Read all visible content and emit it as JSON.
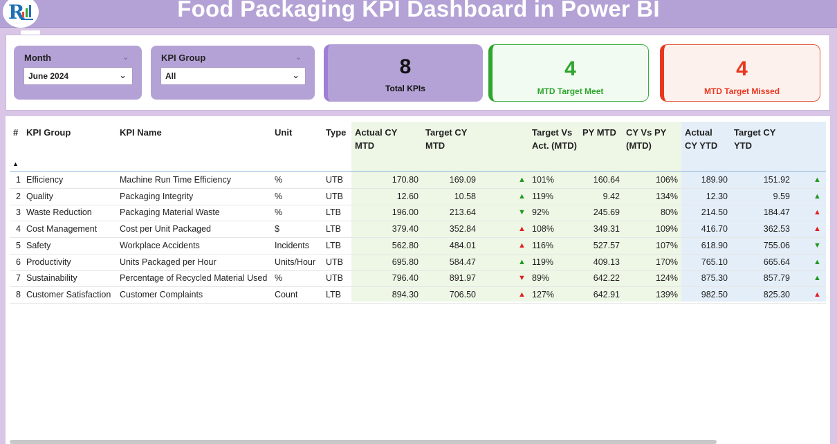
{
  "header": {
    "title": "Food Packaging KPI Dashboard in Power BI",
    "more_options": "..."
  },
  "slicers": {
    "month": {
      "label": "Month",
      "value": "June 2024"
    },
    "kpi_group": {
      "label": "KPI Group",
      "value": "All"
    }
  },
  "cards": {
    "total": {
      "value": "8",
      "caption": "Total KPIs"
    },
    "meet": {
      "value": "4",
      "caption": "MTD Target Meet"
    },
    "missed": {
      "value": "4",
      "caption": "MTD Target Missed"
    }
  },
  "colors": {
    "accent_purple": "#b4a2d6",
    "meet_green": "#2ea52e",
    "missed_red": "#e8371e",
    "mtd_bg": "#eef7e6",
    "ytd_bg": "#e4eef8"
  },
  "table": {
    "headers": {
      "num": "#",
      "group": "KPI Group",
      "name": "KPI Name",
      "unit": "Unit",
      "type": "Type",
      "actual_mtd": "Actual CY MTD",
      "target_mtd": "Target CY MTD",
      "tva": "Target Vs Act. (MTD)",
      "py_mtd": "PY MTD",
      "cy_py": "CY Vs PY (MTD)",
      "actual_ytd": "Actual CY YTD",
      "target_ytd": "Target CY YTD"
    },
    "rows": [
      {
        "num": "1",
        "group": "Efficiency",
        "name": "Machine Run Time Efficiency",
        "unit": "%",
        "type": "UTB",
        "actual_mtd": "170.80",
        "target_mtd": "169.09",
        "mtd_icon": "up-green",
        "tva": "101%",
        "py_mtd": "160.64",
        "cy_py": "106%",
        "actual_ytd": "189.90",
        "target_ytd": "151.92",
        "ytd_icon": "up-green"
      },
      {
        "num": "2",
        "group": "Quality",
        "name": "Packaging Integrity",
        "unit": "%",
        "type": "UTB",
        "actual_mtd": "12.60",
        "target_mtd": "10.58",
        "mtd_icon": "up-green",
        "tva": "119%",
        "py_mtd": "9.42",
        "cy_py": "134%",
        "actual_ytd": "12.30",
        "target_ytd": "9.59",
        "ytd_icon": "up-green"
      },
      {
        "num": "3",
        "group": "Waste Reduction",
        "name": "Packaging Material Waste",
        "unit": "%",
        "type": "LTB",
        "actual_mtd": "196.00",
        "target_mtd": "213.64",
        "mtd_icon": "down-green",
        "tva": "92%",
        "py_mtd": "245.69",
        "cy_py": "80%",
        "actual_ytd": "214.50",
        "target_ytd": "184.47",
        "ytd_icon": "up-red"
      },
      {
        "num": "4",
        "group": "Cost Management",
        "name": "Cost per Unit Packaged",
        "unit": "$",
        "type": "LTB",
        "actual_mtd": "379.40",
        "target_mtd": "352.84",
        "mtd_icon": "up-red",
        "tva": "108%",
        "py_mtd": "349.31",
        "cy_py": "109%",
        "actual_ytd": "416.70",
        "target_ytd": "362.53",
        "ytd_icon": "up-red"
      },
      {
        "num": "5",
        "group": "Safety",
        "name": "Workplace Accidents",
        "unit": "Incidents",
        "type": "LTB",
        "actual_mtd": "562.80",
        "target_mtd": "484.01",
        "mtd_icon": "up-red",
        "tva": "116%",
        "py_mtd": "527.57",
        "cy_py": "107%",
        "actual_ytd": "618.90",
        "target_ytd": "755.06",
        "ytd_icon": "down-green"
      },
      {
        "num": "6",
        "group": "Productivity",
        "name": "Units Packaged per Hour",
        "unit": "Units/Hour",
        "type": "UTB",
        "actual_mtd": "695.80",
        "target_mtd": "584.47",
        "mtd_icon": "up-green",
        "tva": "119%",
        "py_mtd": "409.13",
        "cy_py": "170%",
        "actual_ytd": "765.10",
        "target_ytd": "665.64",
        "ytd_icon": "up-green"
      },
      {
        "num": "7",
        "group": "Sustainability",
        "name": "Percentage of Recycled Material Used",
        "unit": "%",
        "type": "UTB",
        "actual_mtd": "796.40",
        "target_mtd": "891.97",
        "mtd_icon": "down-red",
        "tva": "89%",
        "py_mtd": "642.22",
        "cy_py": "124%",
        "actual_ytd": "875.30",
        "target_ytd": "857.79",
        "ytd_icon": "up-green"
      },
      {
        "num": "8",
        "group": "Customer Satisfaction",
        "name": "Customer Complaints",
        "unit": "Count",
        "type": "LTB",
        "actual_mtd": "894.30",
        "target_mtd": "706.50",
        "mtd_icon": "up-red",
        "tva": "127%",
        "py_mtd": "642.91",
        "cy_py": "139%",
        "actual_ytd": "982.50",
        "target_ytd": "825.30",
        "ytd_icon": "up-red"
      }
    ]
  }
}
